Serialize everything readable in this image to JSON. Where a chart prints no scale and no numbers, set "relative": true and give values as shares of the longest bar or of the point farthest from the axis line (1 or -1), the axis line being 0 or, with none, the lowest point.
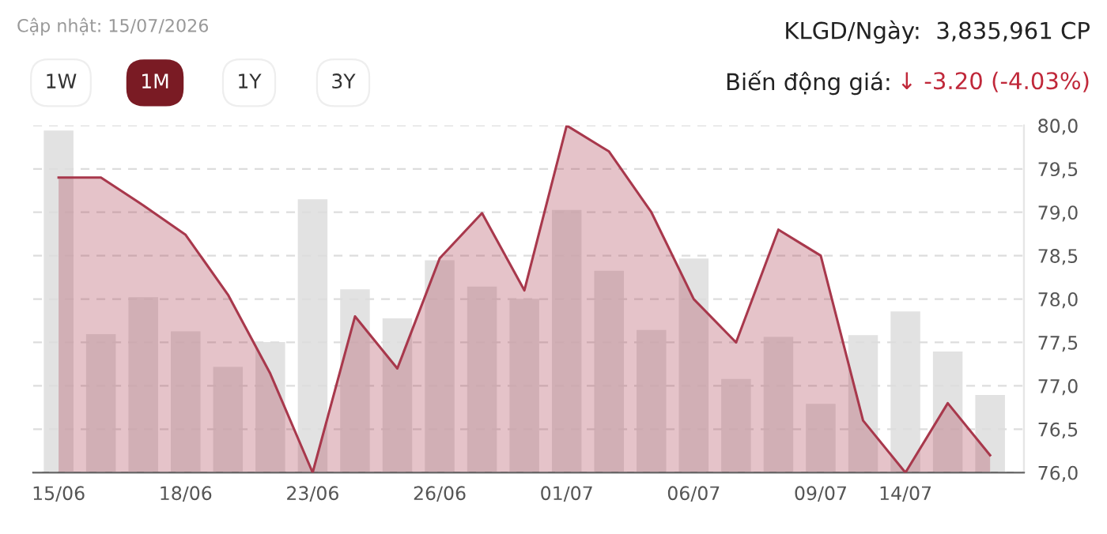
{
  "chart_data": [
    {
      "type": "bar",
      "relative": true,
      "categories": [
        null,
        null,
        null,
        null,
        null,
        null,
        null,
        null,
        null,
        null,
        null,
        null,
        null,
        null,
        null,
        null,
        null,
        null,
        null,
        null,
        null,
        null,
        null
      ],
      "series": [
        {
          "color": "#e2e2e2",
          "values": [
            1,
            0.405,
            0.513,
            0.413,
            0.309,
            0.382,
            0.799,
            0.536,
            0.451,
            0.621,
            0.544,
            0.508,
            0.768,
            0.59,
            0.417,
            0.626,
            0.274,
            0.397,
            0.201,
            0.402,
            0.471,
            0.354,
            0.227
          ]
        }
      ]
    },
    {
      "type": "area",
      "categories": [
        "15/06",
        null,
        null,
        "18/06",
        null,
        null,
        "23/06",
        null,
        null,
        "26/06",
        null,
        null,
        "01/07",
        null,
        null,
        "06/07",
        null,
        null,
        "09/07",
        null,
        "14/07",
        null,
        null
      ],
      "series": [
        {
          "type": "area",
          "color": "#a8384c",
          "values": [
            79.4,
            79.4,
            79.08,
            78.74,
            78.05,
            77.14,
            76.0,
            77.8,
            77.2,
            78.47,
            78.99,
            78.1,
            80.0,
            79.7,
            79.0,
            78.0,
            77.5,
            78.8,
            78.5,
            76.6,
            76.0,
            76.8,
            76.2
          ]
        }
      ],
      "ylim": [
        76.0,
        80.0
      ],
      "yticks": [
        {
          "value": 76.0,
          "label": "76,0"
        },
        {
          "value": 76.5,
          "label": "76,5"
        },
        {
          "value": 77.0,
          "label": "77,0"
        },
        {
          "value": 77.5,
          "label": "77,5"
        },
        {
          "value": 78.0,
          "label": "78,0"
        },
        {
          "value": 78.5,
          "label": "78,5"
        },
        {
          "value": 79.0,
          "label": "79,0"
        },
        {
          "value": 79.5,
          "label": "79,5"
        },
        {
          "value": 80.0,
          "label": "80,0"
        }
      ],
      "grid": "y",
      "annotations": [
        "Cập nhật: 15/07/2026",
        "1W",
        "1M",
        "1Y",
        "3Y",
        "KLGD/Ngày:  3,835,961 CP",
        "Biến động giá:",
        "↓ -3.20 (-4.03%)"
      ]
    }
  ]
}
